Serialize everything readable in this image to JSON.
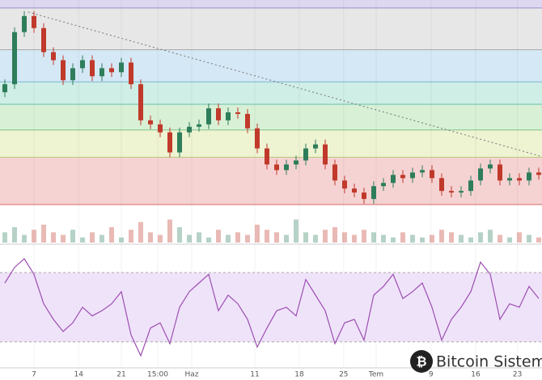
{
  "chart_data": {
    "type": "candlestick",
    "ylim": [
      0,
      260
    ],
    "levels": [
      5,
      64,
      98,
      130,
      158,
      198,
      250
    ],
    "band_colors": [
      "#f6d3d3",
      "#eef3d2",
      "#d8f0d6",
      "#cfeee6",
      "#d5e8f5",
      "#e7e7e7",
      "#ddd7f0"
    ],
    "level_colors": [
      "#d46a6a",
      "#b9c97a",
      "#7fc48a",
      "#69bfae",
      "#7bb3d8",
      "#aaaaaa",
      "#9d90cc"
    ],
    "up_color": "#2e7d5b",
    "down_color": "#c0392b",
    "open": [
      145,
      155,
      220,
      240,
      225,
      195,
      185,
      160,
      175,
      185,
      165,
      175,
      170,
      182,
      155,
      110,
      105,
      95,
      70,
      95,
      102,
      105,
      125,
      110,
      120,
      118,
      100,
      75,
      55,
      48,
      55,
      60,
      75,
      80,
      55,
      35,
      25,
      20,
      12,
      28,
      32,
      42,
      38,
      45,
      48,
      38,
      22,
      20,
      22,
      35,
      50,
      55,
      35,
      38,
      35,
      45
    ],
    "high": [
      161,
      226,
      246,
      246,
      231,
      201,
      191,
      181,
      191,
      191,
      181,
      181,
      188,
      188,
      161,
      116,
      111,
      101,
      101,
      108,
      111,
      131,
      131,
      126,
      126,
      124,
      106,
      81,
      61,
      61,
      66,
      81,
      86,
      86,
      61,
      41,
      31,
      26,
      34,
      38,
      48,
      48,
      51,
      54,
      54,
      44,
      28,
      28,
      41,
      56,
      61,
      61,
      44,
      44,
      51,
      51
    ],
    "low": [
      139,
      149,
      214,
      219,
      189,
      179,
      154,
      154,
      169,
      159,
      159,
      164,
      164,
      149,
      104,
      99,
      89,
      64,
      64,
      89,
      96,
      99,
      104,
      104,
      112,
      94,
      69,
      49,
      42,
      42,
      49,
      54,
      69,
      49,
      29,
      19,
      14,
      6,
      6,
      22,
      26,
      32,
      32,
      39,
      32,
      16,
      14,
      14,
      16,
      29,
      44,
      29,
      29,
      29,
      29,
      36
    ],
    "close": [
      155,
      220,
      240,
      225,
      195,
      185,
      160,
      175,
      185,
      165,
      175,
      170,
      182,
      155,
      110,
      105,
      95,
      70,
      95,
      102,
      105,
      125,
      110,
      120,
      118,
      100,
      75,
      55,
      48,
      55,
      60,
      75,
      80,
      55,
      35,
      25,
      20,
      12,
      28,
      32,
      42,
      38,
      45,
      48,
      38,
      22,
      20,
      22,
      35,
      50,
      55,
      35,
      38,
      35,
      45,
      42
    ],
    "volume": [
      4,
      6,
      3,
      5,
      7,
      4,
      3,
      5,
      2,
      4,
      3,
      6,
      2,
      5,
      8,
      4,
      3,
      9,
      6,
      3,
      4,
      2,
      5,
      3,
      4,
      3,
      7,
      5,
      4,
      3,
      9,
      4,
      3,
      5,
      6,
      4,
      3,
      5,
      4,
      3,
      2,
      4,
      3,
      2,
      3,
      5,
      4,
      3,
      2,
      4,
      5,
      3,
      2,
      4,
      3,
      2
    ],
    "vlim": [
      0,
      12
    ],
    "rsi": [
      64,
      73,
      78,
      69,
      52,
      43,
      36,
      41,
      50,
      45,
      48,
      52,
      59,
      34,
      22,
      38,
      41,
      29,
      50,
      59,
      64,
      69,
      48,
      57,
      52,
      43,
      27,
      38,
      48,
      50,
      45,
      66,
      57,
      48,
      29,
      41,
      43,
      31,
      57,
      62,
      69,
      55,
      59,
      64,
      50,
      31,
      43,
      50,
      59,
      76,
      69,
      43,
      52,
      50,
      62,
      55
    ],
    "rsi_color": "#9c4fb0",
    "rsi_lim": [
      15,
      85
    ],
    "rsi_guides": [
      30,
      70
    ],
    "trendline": {
      "x": [
        2.4,
        55.3
      ],
      "y": [
        245,
        65
      ]
    },
    "xticks": [
      {
        "value": 3,
        "label": "7"
      },
      {
        "value": 7.6,
        "label": "14"
      },
      {
        "value": 12,
        "label": "21"
      },
      {
        "value": 15.75,
        "label": "15:00"
      },
      {
        "value": 19.25,
        "label": "Haz"
      },
      {
        "value": 25.75,
        "label": "11"
      },
      {
        "value": 30.33,
        "label": "18"
      },
      {
        "value": 34.9,
        "label": "25"
      },
      {
        "value": 38.25,
        "label": "Tem"
      },
      {
        "value": 43.9,
        "label": "9"
      },
      {
        "value": 48.5,
        "label": "16"
      },
      {
        "value": 52.8,
        "label": "23"
      }
    ],
    "watermark": "Bitcoin Sistemi"
  }
}
